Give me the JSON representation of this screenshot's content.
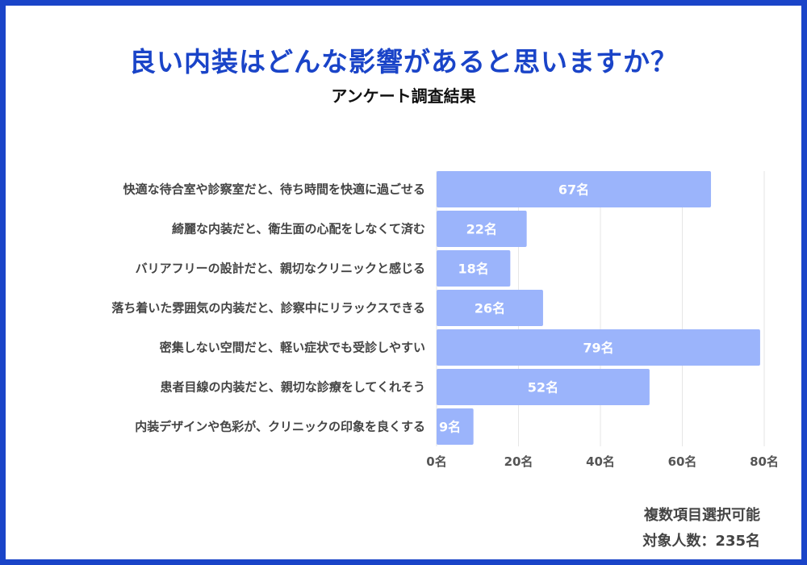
{
  "chart_data": {
    "type": "bar",
    "orientation": "horizontal",
    "title": "良い内装はどんな影響があると思いますか？",
    "subtitle": "アンケート調査結果",
    "categories": [
      "快適な待合室や診察室だと、待ち時間を快適に過ごせる",
      "綺麗な内装だと、衛生面の心配をしなくて済む",
      "バリアフリーの設計だと、親切なクリニックと感じる",
      "落ち着いた雰囲気の内装だと、診察中にリラックスできる",
      "密集しない空間だと、軽い症状でも受診しやすい",
      "患者目線の内装だと、親切な診療をしてくれそう",
      "内装デザインや色彩が、クリニックの印象を良くする"
    ],
    "values": [
      67,
      22,
      18,
      26,
      79,
      52,
      9
    ],
    "value_labels": [
      "67名",
      "22名",
      "18名",
      "26名",
      "79名",
      "52名",
      "9名"
    ],
    "xlim": [
      0,
      80
    ],
    "xticks": [
      0,
      20,
      40,
      60,
      80
    ],
    "xtick_labels": [
      "0名",
      "20名",
      "40名",
      "60名",
      "80名"
    ],
    "grid": true,
    "bar_color": "#9bb4fb"
  },
  "notes": {
    "line1": "複数項目選択可能",
    "line2": "対象人数：235名"
  },
  "colors": {
    "accent": "#1a44c8"
  }
}
